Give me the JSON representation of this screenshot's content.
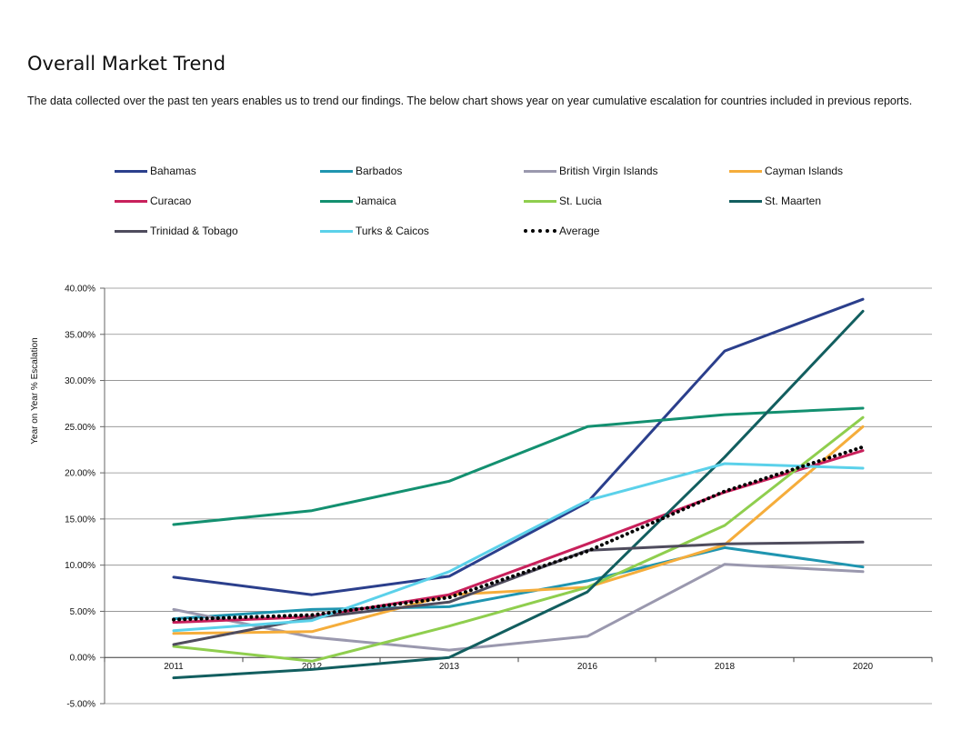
{
  "page": {
    "title": "Overall Market Trend",
    "intro": "The data collected over the past ten years enables us to trend our findings. The below chart shows year on year cumulative escalation for countries included in previous reports."
  },
  "chart_data": {
    "type": "line",
    "title": "",
    "xlabel": "",
    "ylabel": "Year on Year % Escalation",
    "categories": [
      "2011",
      "2012",
      "2013",
      "2016",
      "2018",
      "2020"
    ],
    "ylim": [
      -5,
      40
    ],
    "yticks": [
      -5,
      0,
      5,
      10,
      15,
      20,
      25,
      30,
      35,
      40
    ],
    "ytick_labels": [
      "-5.00%",
      "0.00%",
      "5.00%",
      "10.00%",
      "15.00%",
      "20.00%",
      "25.00%",
      "30.00%",
      "35.00%",
      "40.00%"
    ],
    "grid": true,
    "legend_position": "top",
    "series": [
      {
        "name": "Bahamas",
        "color": "#2b3f8c",
        "values": [
          8.7,
          6.8,
          8.8,
          16.8,
          33.2,
          38.8
        ]
      },
      {
        "name": "Barbados",
        "color": "#1f95b0",
        "values": [
          4.2,
          5.2,
          5.5,
          8.3,
          11.9,
          9.8
        ]
      },
      {
        "name": "British Virgin Islands",
        "color": "#9a98ae",
        "values": [
          5.2,
          2.2,
          0.8,
          2.3,
          10.1,
          9.3
        ]
      },
      {
        "name": "Cayman Islands",
        "color": "#f5ad3b",
        "values": [
          2.6,
          2.8,
          6.8,
          7.6,
          12.2,
          25.0
        ]
      },
      {
        "name": "Curacao",
        "color": "#c8205b",
        "values": [
          3.8,
          4.4,
          6.8,
          12.3,
          17.9,
          22.4
        ]
      },
      {
        "name": "Jamaica",
        "color": "#139070",
        "values": [
          14.4,
          15.9,
          19.1,
          25.0,
          26.3,
          27.0
        ]
      },
      {
        "name": "St. Lucia",
        "color": "#8fce4e",
        "values": [
          1.2,
          -0.4,
          3.4,
          7.6,
          14.3,
          26.0
        ]
      },
      {
        "name": "St. Maarten",
        "color": "#125e5f",
        "values": [
          -2.2,
          -1.3,
          0.0,
          7.1,
          21.7,
          37.5
        ]
      },
      {
        "name": "Trinidad & Tobago",
        "color": "#4f4c5d",
        "values": [
          1.4,
          4.3,
          6.0,
          11.6,
          12.3,
          12.5
        ]
      },
      {
        "name": "Turks & Caicos",
        "color": "#5bd1ea",
        "values": [
          2.9,
          4.0,
          9.3,
          17.0,
          21.0,
          20.5
        ]
      },
      {
        "name": "Average",
        "color": "#000000",
        "dotted": true,
        "values": [
          4.1,
          4.6,
          6.5,
          11.5,
          18.0,
          22.8
        ]
      }
    ]
  }
}
